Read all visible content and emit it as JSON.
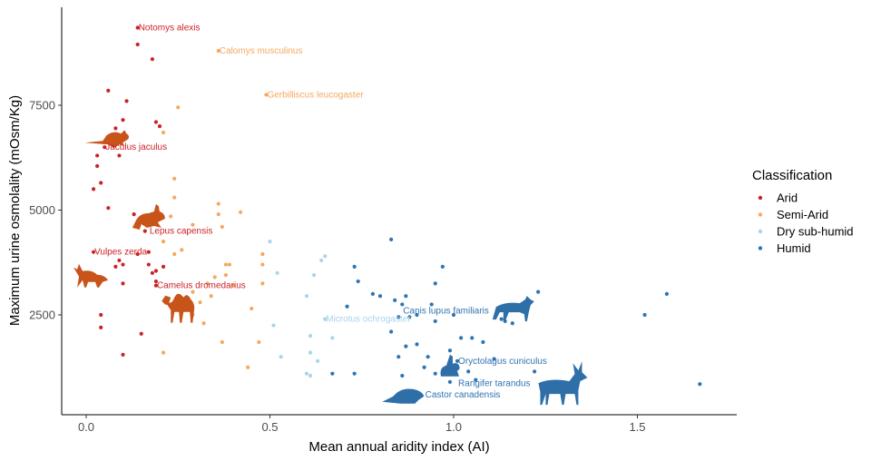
{
  "chart_data": {
    "type": "scatter",
    "xlabel": "Mean annual aridity index (AI)",
    "ylabel": "Maximum urine osmolality (mOsm/Kg)",
    "xlim": [
      -0.07,
      1.77
    ],
    "ylim": [
      500,
      9700
    ],
    "xticks": [
      0.0,
      0.5,
      1.0,
      1.5
    ],
    "xtick_labels": [
      "0.0",
      "0.5",
      "1.0",
      "1.5"
    ],
    "yticks": [
      2500,
      5000,
      7500
    ],
    "ytick_labels": [
      "2500",
      "5000",
      "7500"
    ],
    "grid": false,
    "legend": {
      "title": "Classification",
      "position": "right",
      "entries": [
        "Arid",
        "Semi-Arid",
        "Dry sub-humid",
        "Humid"
      ]
    },
    "colors": {
      "Arid": "#cc2127",
      "Semi-Arid": "#f5a860",
      "Dry sub-humid": "#a9d4ea",
      "Humid": "#2f74b0",
      "silhouette_arid": "#c8541a",
      "silhouette_humid": "#2f6fa8"
    },
    "series": [
      {
        "name": "Arid",
        "x": [
          0.14,
          0.14,
          0.18,
          0.06,
          0.11,
          0.1,
          0.19,
          0.2,
          0.08,
          0.05,
          0.03,
          0.09,
          0.03,
          0.04,
          0.02,
          0.06,
          0.13,
          0.16,
          0.17,
          0.14,
          0.02,
          0.09,
          0.1,
          0.17,
          0.19,
          0.18,
          0.19,
          0.1,
          0.19,
          0.21,
          0.04,
          0.04,
          0.15,
          0.1,
          0.08
        ],
        "y": [
          9350,
          8950,
          8600,
          7850,
          7600,
          7150,
          7100,
          7000,
          6950,
          6500,
          6300,
          6300,
          6050,
          5650,
          5500,
          5050,
          4900,
          4500,
          4000,
          3950,
          4000,
          3800,
          3700,
          3700,
          3550,
          3500,
          3200,
          3250,
          3300,
          3650,
          2500,
          2200,
          2050,
          1550,
          3650
        ]
      },
      {
        "name": "Semi-Arid",
        "x": [
          0.36,
          0.49,
          0.25,
          0.21,
          0.24,
          0.24,
          0.36,
          0.42,
          0.36,
          0.23,
          0.29,
          0.37,
          0.21,
          0.26,
          0.24,
          0.48,
          0.38,
          0.39,
          0.48,
          0.38,
          0.35,
          0.48,
          0.33,
          0.4,
          0.29,
          0.34,
          0.31,
          0.32,
          0.45,
          0.47,
          0.37,
          0.21,
          0.44,
          0.29
        ],
        "y": [
          8800,
          7750,
          7450,
          6850,
          5750,
          5300,
          5150,
          4950,
          4900,
          4850,
          4650,
          4600,
          4250,
          4050,
          3950,
          3950,
          3700,
          3700,
          3700,
          3450,
          3400,
          3250,
          3250,
          3200,
          3050,
          2950,
          2800,
          2300,
          2650,
          1850,
          1850,
          1600,
          1250,
          2500
        ]
      },
      {
        "name": "Dry sub-humid",
        "x": [
          0.65,
          0.5,
          0.64,
          0.62,
          0.52,
          0.6,
          0.65,
          0.51,
          0.61,
          0.67,
          0.61,
          0.53,
          0.63,
          0.6,
          0.61
        ],
        "y": [
          3900,
          4250,
          3800,
          3450,
          3500,
          2950,
          2400,
          2250,
          2000,
          1950,
          1600,
          1500,
          1400,
          1100,
          1050
        ]
      },
      {
        "name": "Humid",
        "x": [
          0.83,
          0.73,
          0.74,
          0.78,
          0.8,
          0.87,
          0.97,
          0.95,
          0.84,
          0.86,
          0.94,
          0.88,
          0.71,
          0.85,
          0.9,
          1.0,
          0.83,
          1.05,
          1.08,
          1.14,
          1.23,
          1.58,
          1.52,
          1.67,
          0.95,
          0.87,
          0.99,
          1.01,
          0.92,
          1.04,
          1.22,
          1.06,
          0.73,
          0.67,
          0.99,
          0.91,
          0.95,
          0.86,
          0.9,
          1.13,
          1.16,
          0.93,
          0.85,
          1.02,
          1.11
        ],
        "y": [
          4300,
          3650,
          3300,
          3000,
          2950,
          2950,
          3650,
          3250,
          2850,
          2750,
          2750,
          2450,
          2700,
          2450,
          2500,
          2500,
          2100,
          1950,
          1850,
          2350,
          3050,
          3000,
          2500,
          850,
          2350,
          1750,
          1650,
          1400,
          1250,
          1150,
          1150,
          950,
          1100,
          1100,
          900,
          600,
          1100,
          1050,
          1800,
          2400,
          2300,
          1500,
          1500,
          1950,
          1450
        ]
      }
    ],
    "annotations": [
      {
        "text": "Notomys alexis",
        "x": 0.14,
        "y": 9350,
        "class": "Arid"
      },
      {
        "text": "Calomys musculinus",
        "x": 0.36,
        "y": 8800,
        "class": "Semi-Arid"
      },
      {
        "text": "Gerbilliscus leucogaster",
        "x": 0.49,
        "y": 7750,
        "class": "Semi-Arid"
      },
      {
        "text": "Jaculus jaculus",
        "x": 0.05,
        "y": 6500,
        "class": "Arid"
      },
      {
        "text": "Lepus capensis",
        "x": 0.17,
        "y": 4500,
        "class": "Arid"
      },
      {
        "text": "Vulpes zerda",
        "x": 0.02,
        "y": 4000,
        "class": "Arid"
      },
      {
        "text": "Camelus dromedarius",
        "x": 0.19,
        "y": 3200,
        "class": "Arid"
      },
      {
        "text": "Microtus ochrogaster",
        "x": 0.65,
        "y": 2400,
        "class": "Dry sub-humid"
      },
      {
        "text": "Canis lupus familiaris",
        "x": 0.86,
        "y": 2600,
        "class": "Humid"
      },
      {
        "text": "Oryctolagus cuniculus",
        "x": 1.01,
        "y": 1400,
        "class": "Humid"
      },
      {
        "text": "Rangifer tarandus",
        "x": 1.01,
        "y": 870,
        "class": "Humid"
      },
      {
        "text": "Castor canadensis",
        "x": 0.92,
        "y": 600,
        "class": "Humid"
      }
    ],
    "silhouettes": [
      {
        "icon": "jerboa-icon",
        "x": 0.07,
        "y": 6650,
        "class": "Arid"
      },
      {
        "icon": "hare-icon",
        "x": 0.17,
        "y": 4750,
        "class": "Arid"
      },
      {
        "icon": "fennec-fox-icon",
        "x": 0.01,
        "y": 3500,
        "class": "Arid"
      },
      {
        "icon": "camel-icon",
        "x": 0.25,
        "y": 2700,
        "class": "Arid"
      },
      {
        "icon": "wolf-icon",
        "x": 1.16,
        "y": 2650,
        "class": "Humid"
      },
      {
        "icon": "rabbit-icon",
        "x": 0.99,
        "y": 1250,
        "class": "Humid"
      },
      {
        "icon": "beaver-icon",
        "x": 0.87,
        "y": 600,
        "class": "Humid"
      },
      {
        "icon": "reindeer-icon",
        "x": 1.29,
        "y": 700,
        "class": "Humid"
      }
    ]
  }
}
